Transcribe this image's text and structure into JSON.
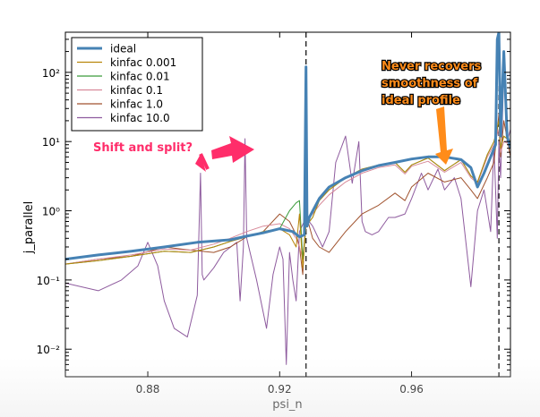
{
  "chart_data": {
    "type": "line",
    "xlabel": "psi_n",
    "ylabel": "j_parallel",
    "yscale": "log",
    "xlim": [
      0.855,
      0.99
    ],
    "ylim": [
      0.004,
      380
    ],
    "xticks": [
      0.88,
      0.92,
      0.96
    ],
    "xtick_labels": [
      "0.88",
      "0.92",
      "0.96"
    ],
    "yticks": [
      0.01,
      0.1,
      1,
      10,
      100
    ],
    "ytick_labels": [
      "10⁻²",
      "10⁻¹",
      "10⁰",
      "10¹",
      "10²"
    ],
    "grid": false,
    "legend_position": "top-left",
    "vlines": [
      0.928,
      0.9865
    ],
    "series": [
      {
        "name": "ideal",
        "color": "#4682b4",
        "width": 3,
        "x": [
          0.855,
          0.865,
          0.875,
          0.885,
          0.895,
          0.905,
          0.91,
          0.915,
          0.92,
          0.924,
          0.926,
          0.9275,
          0.928,
          0.9283,
          0.929,
          0.932,
          0.935,
          0.94,
          0.945,
          0.95,
          0.955,
          0.96,
          0.965,
          0.97,
          0.975,
          0.978,
          0.98,
          0.982,
          0.984,
          0.9855,
          0.986,
          0.9865,
          0.987,
          0.988,
          0.989,
          0.99
        ],
        "y": [
          0.2,
          0.23,
          0.26,
          0.3,
          0.35,
          0.38,
          0.43,
          0.48,
          0.55,
          0.5,
          0.42,
          0.45,
          120,
          0.6,
          0.8,
          1.5,
          2.2,
          3.0,
          3.8,
          4.5,
          5.0,
          5.6,
          6.0,
          6.0,
          5.5,
          4.2,
          2.2,
          3.5,
          6.0,
          9.0,
          300,
          380,
          12,
          200,
          12,
          8
        ]
      },
      {
        "name": "kinfac 0.001",
        "color": "#b8860b",
        "width": 1,
        "x": [
          0.855,
          0.865,
          0.875,
          0.885,
          0.893,
          0.9,
          0.905,
          0.91,
          0.915,
          0.92,
          0.923,
          0.925,
          0.926,
          0.927,
          0.928,
          0.93,
          0.932,
          0.935,
          0.94,
          0.945,
          0.95,
          0.955,
          0.958,
          0.96,
          0.965,
          0.97,
          0.975,
          0.978,
          0.98,
          0.983,
          0.985,
          0.9865,
          0.987,
          0.988,
          0.99
        ],
        "y": [
          0.17,
          0.19,
          0.22,
          0.26,
          0.25,
          0.3,
          0.36,
          0.42,
          0.5,
          0.55,
          0.45,
          0.3,
          0.9,
          0.15,
          0.6,
          0.8,
          1.4,
          2.0,
          3.0,
          4.0,
          4.6,
          5.0,
          3.6,
          4.6,
          5.8,
          3.8,
          5.5,
          3.2,
          2.6,
          6.5,
          10,
          20,
          8,
          12,
          10
        ]
      },
      {
        "name": "kinfac 0.01",
        "color": "#3a9a3a",
        "width": 1,
        "x": [
          0.855,
          0.865,
          0.875,
          0.885,
          0.893,
          0.9,
          0.905,
          0.91,
          0.915,
          0.92,
          0.923,
          0.925,
          0.926,
          0.927,
          0.928,
          0.93,
          0.932,
          0.935,
          0.94,
          0.945,
          0.95,
          0.955,
          0.958,
          0.96,
          0.965,
          0.97,
          0.975,
          0.978,
          0.98,
          0.983,
          0.985,
          0.9865,
          0.987,
          0.988,
          0.99
        ],
        "y": [
          0.17,
          0.19,
          0.22,
          0.26,
          0.25,
          0.3,
          0.36,
          0.42,
          0.5,
          0.55,
          1.0,
          1.3,
          1.4,
          0.2,
          0.6,
          0.8,
          1.4,
          2.0,
          3.0,
          4.0,
          4.6,
          5.0,
          3.6,
          4.6,
          5.8,
          3.8,
          5.5,
          3.2,
          2.6,
          6.5,
          10,
          20,
          8,
          12,
          10
        ]
      },
      {
        "name": "kinfac 0.1",
        "color": "#d88a9a",
        "width": 1,
        "x": [
          0.855,
          0.865,
          0.875,
          0.885,
          0.893,
          0.9,
          0.905,
          0.91,
          0.915,
          0.92,
          0.923,
          0.925,
          0.926,
          0.927,
          0.928,
          0.93,
          0.932,
          0.935,
          0.94,
          0.945,
          0.95,
          0.955,
          0.958,
          0.96,
          0.965,
          0.97,
          0.975,
          0.978,
          0.98,
          0.983,
          0.985,
          0.9865,
          0.987,
          0.988,
          0.99
        ],
        "y": [
          0.17,
          0.2,
          0.23,
          0.28,
          0.27,
          0.33,
          0.4,
          0.5,
          0.6,
          0.65,
          0.55,
          0.4,
          0.3,
          0.2,
          0.7,
          0.9,
          1.2,
          1.7,
          2.6,
          3.5,
          4.2,
          4.6,
          3.4,
          4.4,
          5.2,
          3.6,
          5.0,
          3.0,
          2.5,
          6.0,
          9,
          15,
          7,
          10,
          9
        ]
      },
      {
        "name": "kinfac 1.0",
        "color": "#a0522d",
        "width": 1,
        "x": [
          0.855,
          0.865,
          0.875,
          0.885,
          0.893,
          0.9,
          0.905,
          0.91,
          0.915,
          0.92,
          0.923,
          0.925,
          0.926,
          0.927,
          0.928,
          0.93,
          0.932,
          0.935,
          0.94,
          0.945,
          0.95,
          0.955,
          0.958,
          0.96,
          0.965,
          0.97,
          0.975,
          0.978,
          0.98,
          0.983,
          0.985,
          0.9865,
          0.987,
          0.988,
          0.99
        ],
        "y": [
          0.17,
          0.2,
          0.22,
          0.3,
          0.27,
          0.25,
          0.3,
          0.42,
          0.5,
          0.9,
          0.7,
          0.45,
          0.3,
          0.12,
          0.9,
          0.4,
          0.3,
          0.25,
          0.5,
          0.9,
          1.2,
          1.8,
          1.4,
          2.2,
          3.5,
          2.6,
          3.0,
          2.0,
          1.5,
          3.0,
          5,
          25,
          6,
          20,
          6
        ]
      },
      {
        "name": "kinfac 10.0",
        "color": "#8e5b9e",
        "width": 1,
        "x": [
          0.855,
          0.865,
          0.872,
          0.877,
          0.88,
          0.883,
          0.885,
          0.888,
          0.892,
          0.895,
          0.896,
          0.8965,
          0.897,
          0.9,
          0.903,
          0.907,
          0.908,
          0.909,
          0.9095,
          0.91,
          0.913,
          0.916,
          0.918,
          0.92,
          0.921,
          0.922,
          0.923,
          0.924,
          0.925,
          0.926,
          0.928,
          0.93,
          0.933,
          0.935,
          0.937,
          0.94,
          0.942,
          0.944,
          0.945,
          0.946,
          0.948,
          0.95,
          0.953,
          0.955,
          0.958,
          0.96,
          0.963,
          0.965,
          0.968,
          0.97,
          0.973,
          0.975,
          0.978,
          0.98,
          0.982,
          0.984,
          0.985,
          0.986,
          0.9865,
          0.987,
          0.988,
          0.989,
          0.99
        ],
        "y": [
          0.09,
          0.07,
          0.1,
          0.16,
          0.35,
          0.16,
          0.05,
          0.02,
          0.015,
          0.06,
          3.5,
          0.12,
          0.1,
          0.15,
          0.25,
          0.35,
          0.05,
          0.3,
          11,
          0.4,
          0.1,
          0.02,
          0.12,
          0.3,
          0.2,
          0.006,
          0.25,
          0.1,
          0.05,
          0.5,
          0.8,
          0.6,
          0.3,
          0.5,
          5,
          12,
          2.5,
          10,
          0.7,
          0.5,
          0.45,
          0.5,
          0.8,
          0.8,
          0.9,
          1.5,
          3.5,
          2.0,
          4.0,
          2.0,
          3.0,
          1.5,
          0.08,
          1.0,
          2.0,
          0.5,
          9,
          0.4,
          10,
          3.0,
          100,
          10,
          15
        ]
      }
    ]
  },
  "annotations": {
    "shift": {
      "text": "Shift and split?",
      "color": "#ff2d6a"
    },
    "never": {
      "lines": [
        "Never recovers",
        "smoothness of",
        "ideal profile"
      ],
      "color": "#ff8c1a"
    }
  }
}
